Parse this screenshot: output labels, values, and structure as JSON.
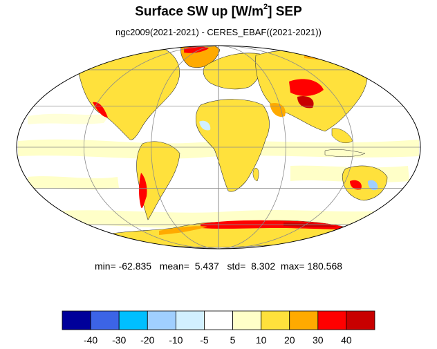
{
  "title": {
    "main": "Surface SW up [W/m",
    "sup": "2",
    "tail": "]  SEP"
  },
  "subtitle": "ngc2009(2021-2021) - CERES_EBAF((2021-2021))",
  "stats": {
    "min_label": "min=",
    "min": "-62.835",
    "mean_label": "mean=",
    "mean": "5.437",
    "std_label": "std=",
    "std": "8.302",
    "max_label": "max=",
    "max": "180.568"
  },
  "map": {
    "projection": "Mollweide",
    "parallels_deg": [
      -60,
      -30,
      0,
      30,
      60
    ],
    "meridians_deg": [
      -120,
      -60,
      0,
      60,
      120
    ]
  },
  "colorbar": {
    "labels": [
      "-40",
      "-30",
      "-20",
      "-10",
      "-5",
      "5",
      "10",
      "20",
      "30",
      "40"
    ],
    "colors": [
      "#00009a",
      "#3c64e6",
      "#00bfff",
      "#a0cfff",
      "#d2f0ff",
      "#ffffff",
      "#ffffc8",
      "#ffe13c",
      "#ffaa00",
      "#ff0000",
      "#c80000"
    ]
  },
  "chart_data": {
    "type": "heatmap",
    "title": "Surface SW up [W/m2]  SEP",
    "subtitle": "ngc2009(2021-2021) - CERES_EBAF((2021-2021))",
    "levels": [
      -40,
      -30,
      -20,
      -10,
      -5,
      5,
      10,
      20,
      30,
      40
    ],
    "summary": {
      "min": -62.835,
      "mean": 5.437,
      "std": 8.302,
      "max": 180.568
    },
    "legend": "bottom"
  }
}
